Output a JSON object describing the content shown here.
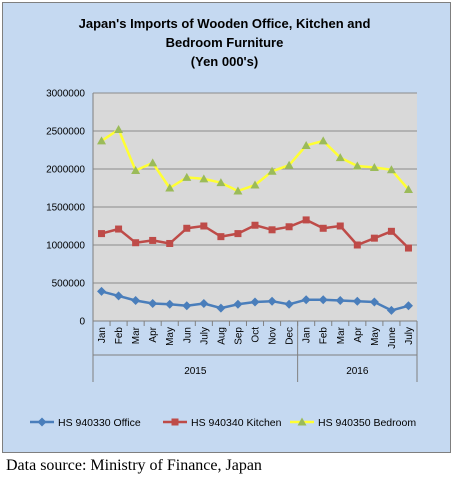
{
  "chart_data": {
    "type": "line",
    "title_lines": [
      "Japan's Imports of Wooden Office, Kitchen and",
      "Bedroom Furniture",
      "(Yen 000's)"
    ],
    "ylim": [
      0,
      3000000
    ],
    "yticks": [
      "0",
      "500000",
      "1000000",
      "1500000",
      "2000000",
      "2500000",
      "3000000"
    ],
    "grid": true,
    "legend_position": "bottom",
    "categories": [
      "Jan",
      "Feb",
      "Mar",
      "Apr",
      "May",
      "Jun",
      "July",
      "Aug",
      "Sep",
      "Oct",
      "Nov",
      "Dec",
      "Jan",
      "Feb",
      "Mar",
      "Apr",
      "May",
      "June",
      "July"
    ],
    "year_groups": [
      {
        "label": "2015",
        "count": 12
      },
      {
        "label": "2016",
        "count": 7
      }
    ],
    "series": [
      {
        "name": "HS 940330 Office",
        "color": "#4a7ebb",
        "marker": "diamond",
        "values": [
          390000,
          330000,
          270000,
          230000,
          220000,
          200000,
          230000,
          170000,
          220000,
          250000,
          260000,
          220000,
          280000,
          280000,
          270000,
          260000,
          250000,
          140000,
          200000
        ]
      },
      {
        "name": "HS 940340 Kitchen",
        "color": "#be4b48",
        "marker": "square",
        "values": [
          1150000,
          1210000,
          1030000,
          1060000,
          1020000,
          1220000,
          1250000,
          1110000,
          1150000,
          1260000,
          1200000,
          1240000,
          1330000,
          1220000,
          1250000,
          1000000,
          1090000,
          1180000,
          960000
        ]
      },
      {
        "name": "HS 940350 Bedroom",
        "color": "#ffff33",
        "marker": "triangle",
        "marker_color": "#9bbb59",
        "values": [
          2370000,
          2520000,
          1980000,
          2080000,
          1750000,
          1890000,
          1870000,
          1820000,
          1710000,
          1790000,
          1970000,
          2050000,
          2310000,
          2370000,
          2150000,
          2040000,
          2020000,
          1990000,
          1730000
        ]
      }
    ]
  },
  "source_note": "Data source: Ministry of Finance, Japan"
}
